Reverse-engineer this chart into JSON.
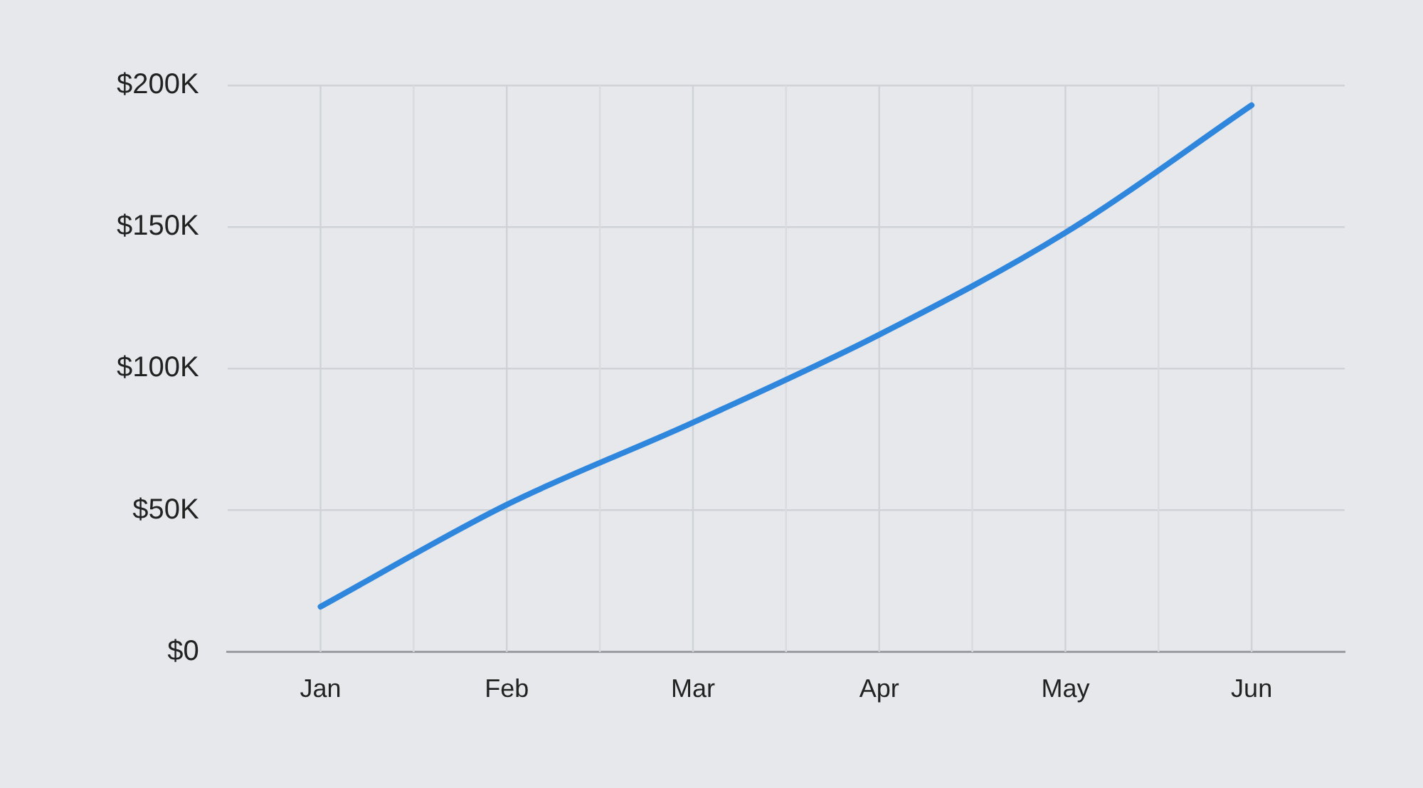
{
  "chart_data": {
    "type": "line",
    "categories": [
      "Jan",
      "Feb",
      "Mar",
      "Apr",
      "May",
      "Jun"
    ],
    "series": [
      {
        "color": "#2f86dd",
        "values": [
          16,
          52,
          81,
          112,
          148,
          193
        ]
      }
    ],
    "ylim": [
      0,
      200
    ],
    "yticks": [
      {
        "value": 0,
        "label": "$0"
      },
      {
        "value": 50,
        "label": "$50K"
      },
      {
        "value": 100,
        "label": "$100K"
      },
      {
        "value": 150,
        "label": "$150K"
      },
      {
        "value": 200,
        "label": "$200K"
      }
    ],
    "grid": true,
    "legend": false,
    "marker": "none",
    "line_style": "solid"
  }
}
